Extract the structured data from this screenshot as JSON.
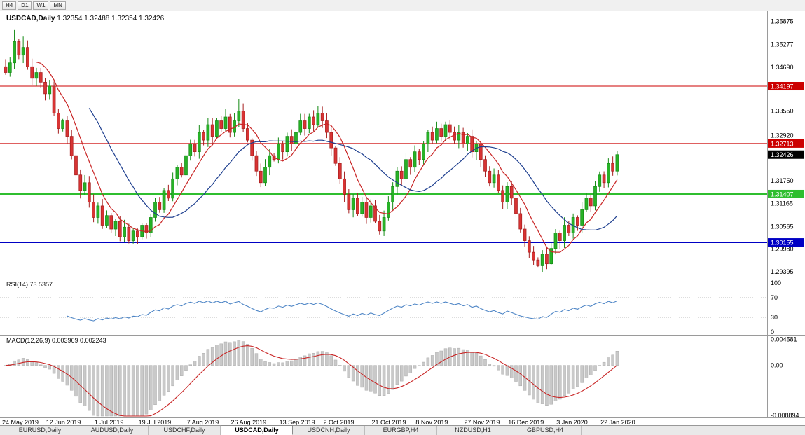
{
  "toolbar": {
    "periods": [
      "H4",
      "D1",
      "W1",
      "MN"
    ]
  },
  "main_chart": {
    "symbol": "USDCAD,Daily",
    "ohlc_text": "1.32354 1.32488 1.32354 1.32426",
    "open": "1.32354",
    "high": "1.32488",
    "low": "1.32354",
    "close": "1.32426"
  },
  "indicators": {
    "rsi_label": "RSI(14) 73.5357",
    "macd_label": "MACD(12,26,9) 0.003969 0.002243"
  },
  "colors": {
    "bull": "#27b227",
    "bull_border": "#148a14",
    "bear": "#d83434",
    "bear_border": "#a51d1d",
    "ma_fast": "#c92626",
    "ma_slow": "#1e3f8f",
    "rsi": "#4f86c6",
    "macd_hist_fill": "#c9c9c9",
    "macd_hist_stroke": "#ababab",
    "macd_signal": "#c92626",
    "red": "#cc0000",
    "green": "#2fbe2f",
    "blue": "#0000c4",
    "black": "#000000",
    "separator": "#9a9a9a",
    "level_dotted": "#bbbbbb"
  },
  "price_axis": {
    "ticks": [
      "1.35875",
      "1.35277",
      "1.34690",
      "1.33550",
      "1.32920",
      "1.31750",
      "1.31165",
      "1.30565",
      "1.29980",
      "1.29395"
    ]
  },
  "rsi_axis": {
    "ticks": [
      100,
      70,
      30,
      0
    ],
    "levels": [
      70,
      30
    ]
  },
  "macd_axis": {
    "ticks": [
      {
        "v": 0.004581,
        "label": "0.004581"
      },
      {
        "v": 0,
        "label": "0.00"
      },
      {
        "v": -0.008894,
        "label": "-0.008894"
      }
    ]
  },
  "footer_tabs": [
    {
      "label": "EURUSD,Daily",
      "active": false
    },
    {
      "label": "AUDUSD,Daily",
      "active": false
    },
    {
      "label": "USDCHF,Daily",
      "active": false
    },
    {
      "label": "USDCAD,Daily",
      "active": true
    },
    {
      "label": "USDCNH,Daily",
      "active": false
    },
    {
      "label": "EURGBP,H4",
      "active": false
    },
    {
      "label": "NZDUSD,H1",
      "active": false
    },
    {
      "label": "GBPUSD,H4",
      "active": false
    }
  ],
  "chart_data": {
    "type": "candlestick",
    "title": "USDCAD,Daily",
    "x_labels": [
      "24 May 2019",
      "12 Jun 2019",
      "1 Jul 2019",
      "19 Jul 2019",
      "7 Aug 2019",
      "26 Aug 2019",
      "13 Sep 2019",
      "2 Oct 2019",
      "21 Oct 2019",
      "8 Nov 2019",
      "27 Nov 2019",
      "16 Dec 2019",
      "3 Jan 2020",
      "22 Jan 2020"
    ],
    "price_range": [
      1.2925,
      1.361
    ],
    "closes": [
      1.3455,
      1.348,
      1.3535,
      1.35,
      1.352,
      1.347,
      1.344,
      1.3455,
      1.343,
      1.34,
      1.342,
      1.335,
      1.331,
      1.333,
      1.329,
      1.324,
      1.319,
      1.315,
      1.317,
      1.312,
      1.308,
      1.311,
      1.306,
      1.3085,
      1.305,
      1.307,
      1.303,
      1.3055,
      1.302,
      1.3045,
      1.303,
      1.306,
      1.304,
      1.308,
      1.312,
      1.31,
      1.315,
      1.313,
      1.318,
      1.321,
      1.319,
      1.324,
      1.327,
      1.325,
      1.33,
      1.328,
      1.332,
      1.329,
      1.333,
      1.331,
      1.334,
      1.33,
      1.333,
      1.3355,
      1.331,
      1.328,
      1.324,
      1.32,
      1.317,
      1.321,
      1.324,
      1.323,
      1.327,
      1.325,
      1.329,
      1.327,
      1.33,
      1.333,
      1.331,
      1.334,
      1.332,
      1.335,
      1.333,
      1.33,
      1.326,
      1.322,
      1.318,
      1.314,
      1.31,
      1.313,
      1.309,
      1.312,
      1.308,
      1.311,
      1.307,
      1.3045,
      1.308,
      1.312,
      1.316,
      1.32,
      1.318,
      1.323,
      1.321,
      1.325,
      1.323,
      1.327,
      1.33,
      1.328,
      1.331,
      1.329,
      1.332,
      1.33,
      1.328,
      1.33,
      1.327,
      1.329,
      1.325,
      1.327,
      1.323,
      1.32,
      1.317,
      1.319,
      1.315,
      1.312,
      1.316,
      1.313,
      1.309,
      1.305,
      1.302,
      1.299,
      1.297,
      1.2955,
      1.2985,
      1.296,
      1.3,
      1.304,
      1.302,
      1.306,
      1.304,
      1.308,
      1.306,
      1.31,
      1.313,
      1.311,
      1.316,
      1.319,
      1.317,
      1.322,
      1.32,
      1.32426
    ],
    "spikes": {
      "2": {
        "high": 1.3565
      },
      "4": {
        "high": 1.3548
      },
      "10": {
        "high": 1.3436
      },
      "28": {
        "low": 1.3013
      },
      "53": {
        "high": 1.3387
      },
      "85": {
        "low": 1.3036
      },
      "121": {
        "low": 1.2952
      },
      "124": {
        "low": 1.2958
      }
    },
    "horizontal_lines": [
      {
        "value": 1.34197,
        "label": "1.34197",
        "color": "red",
        "width": 1
      },
      {
        "value": 1.32713,
        "label": "1.32713",
        "color": "red",
        "width": 1
      },
      {
        "value": 1.31407,
        "label": "1.31407",
        "color": "green",
        "width": 2
      },
      {
        "value": 1.30155,
        "label": "1.30155",
        "color": "blue",
        "width": 2
      }
    ],
    "current_price": {
      "value": 1.32426,
      "label": "1.32426"
    },
    "moving_averages": [
      {
        "period": 8,
        "colorKey": "ma_fast"
      },
      {
        "period": 20,
        "colorKey": "ma_slow"
      }
    ],
    "rsi_period": 14,
    "macd_params": {
      "fast": 12,
      "slow": 26,
      "signal": 9
    },
    "macd_range": [
      -0.0089,
      0.00475
    ]
  }
}
